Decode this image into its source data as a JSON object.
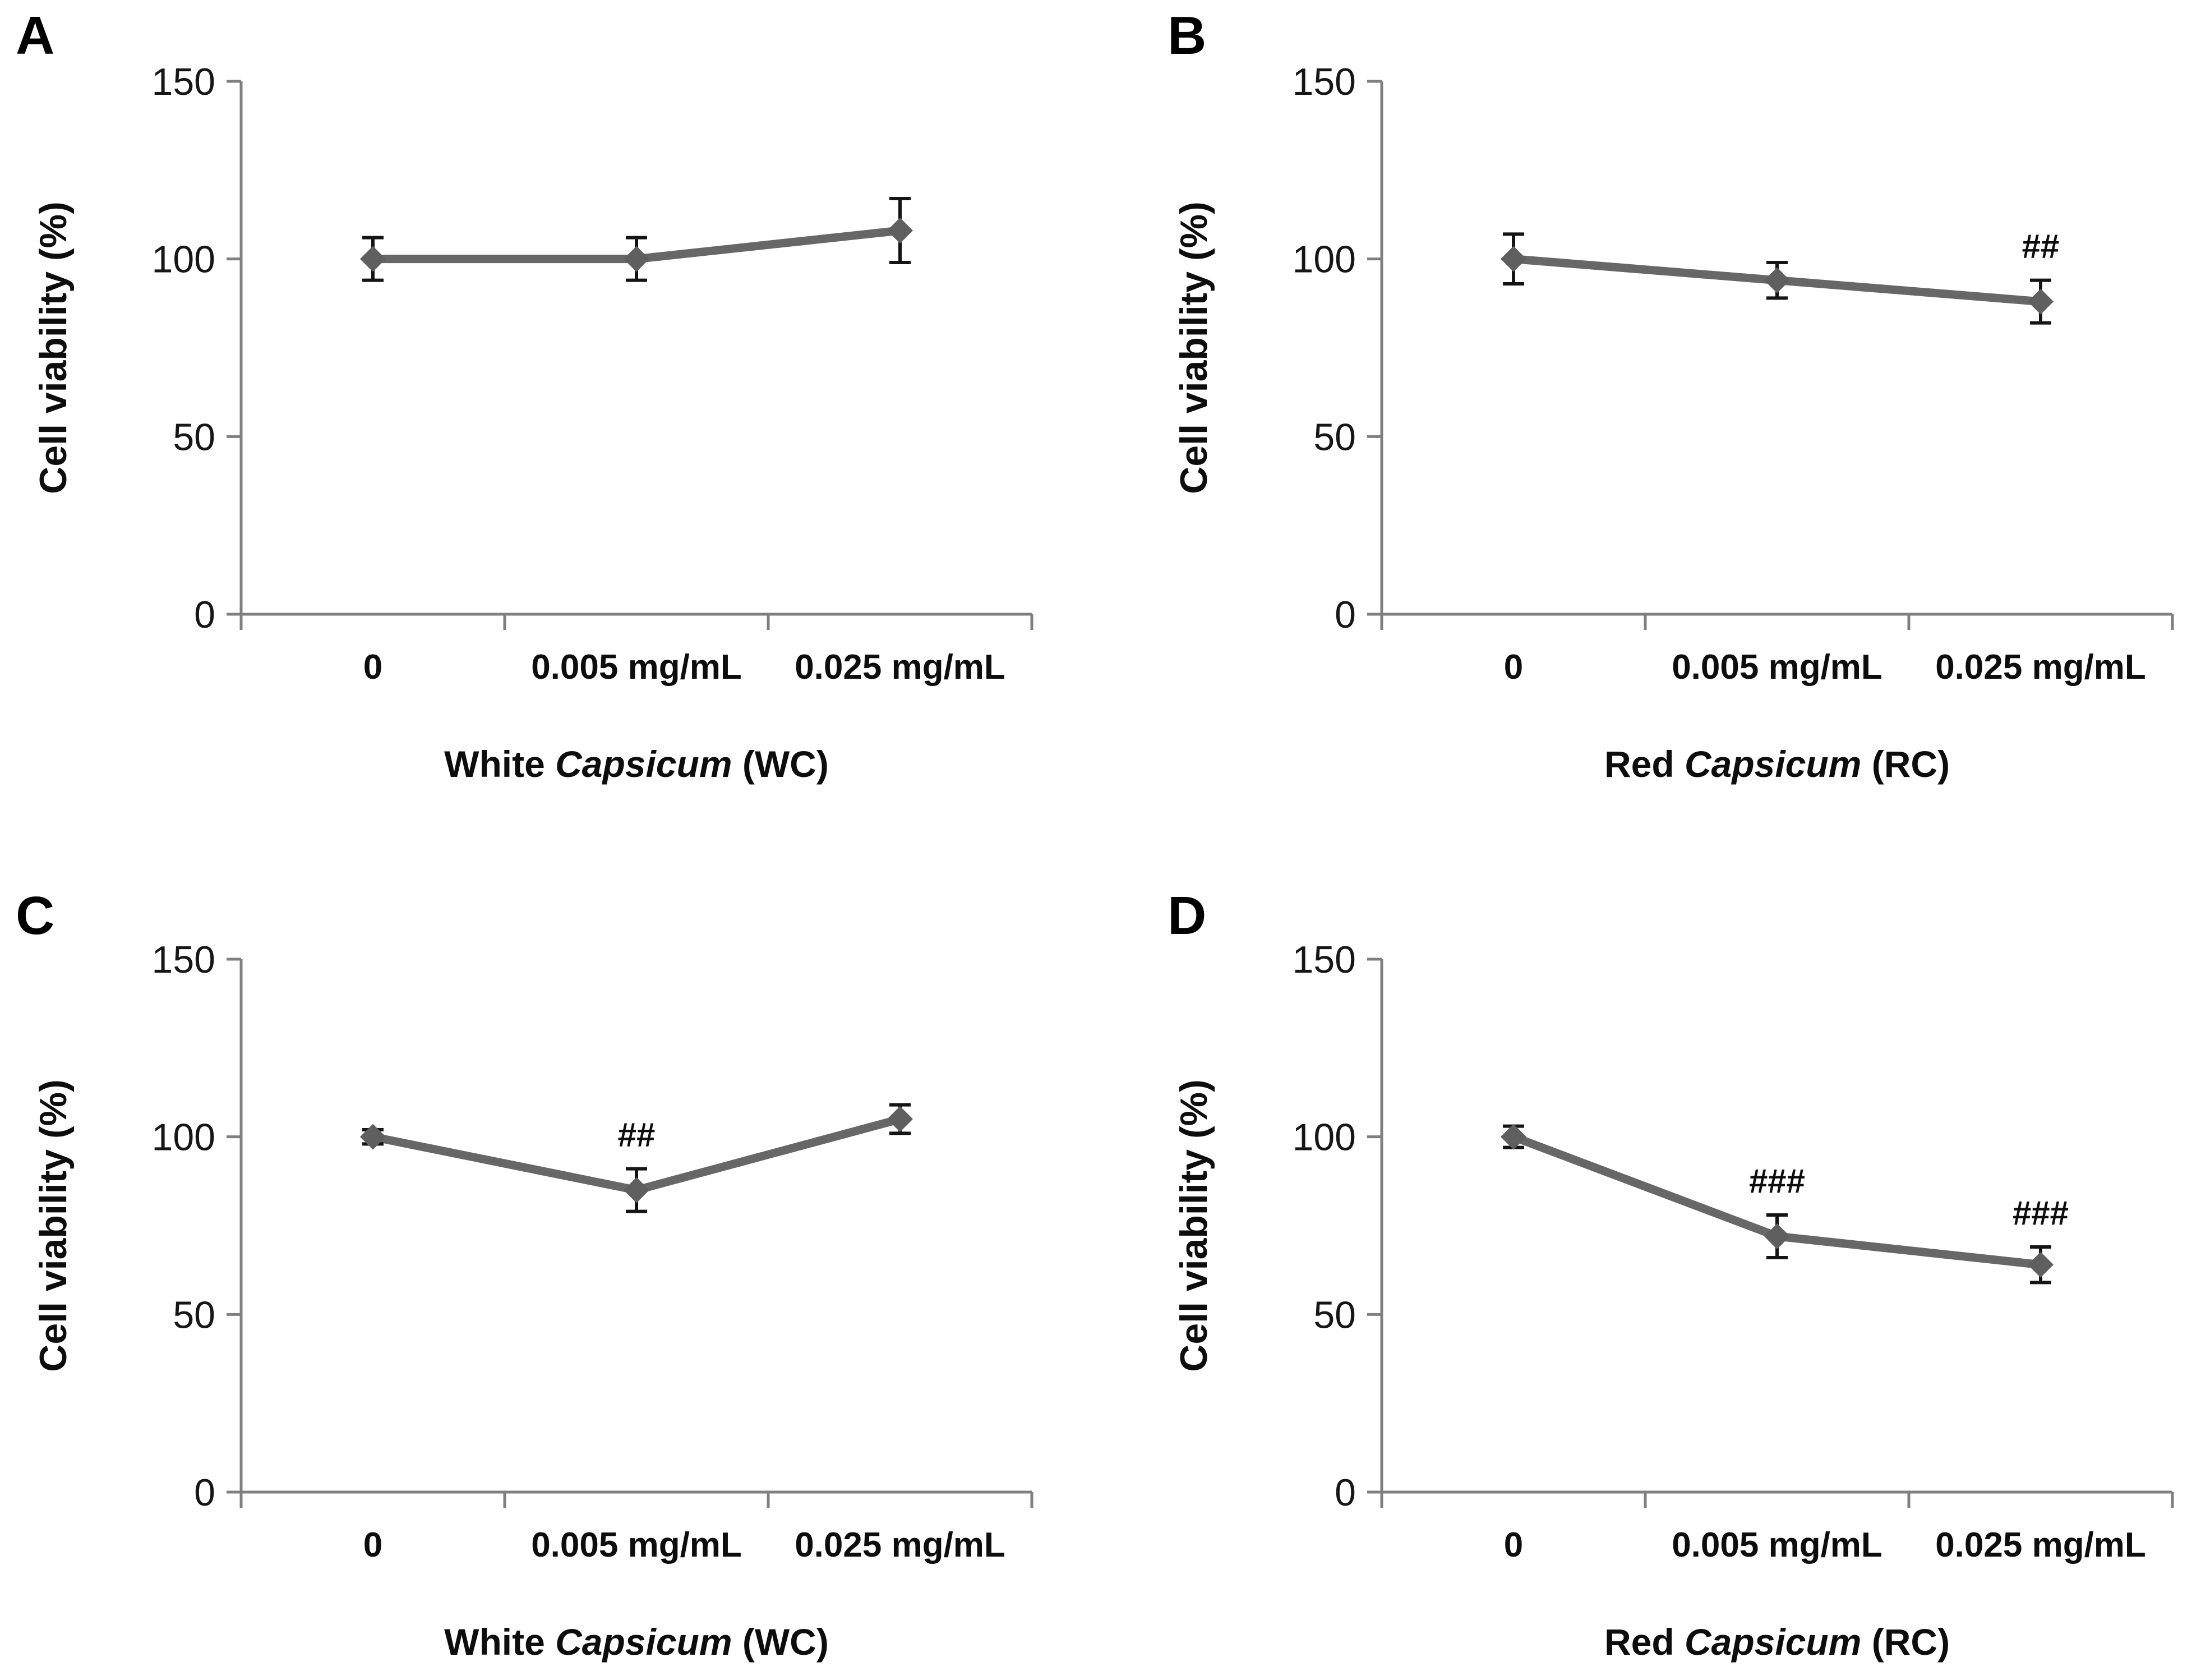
{
  "styles": {
    "background": "#ffffff",
    "line_color": "#676767",
    "marker_color": "#5f5f5f",
    "error_color": "#141414",
    "axis_color": "#7f7f7f",
    "text_color": "#0d0d0d"
  },
  "chart_data": [
    {
      "panel": "A",
      "type": "line",
      "categories": [
        "0",
        "0.005 mg/mL",
        "0.025 mg/mL"
      ],
      "values": [
        100,
        100,
        108
      ],
      "errors": [
        6,
        6,
        9
      ],
      "sig": [
        "",
        "",
        ""
      ],
      "ylabel": "Cell viability (%)",
      "xlabel_parts": [
        {
          "text": "White ",
          "italic": false
        },
        {
          "text": "Capsicum",
          "italic": true
        },
        {
          "text": " (WC)",
          "italic": false
        }
      ],
      "yticks": [
        0,
        50,
        100,
        150
      ],
      "ylim": [
        0,
        150
      ],
      "grid": false,
      "legend": "none"
    },
    {
      "panel": "B",
      "type": "line",
      "categories": [
        "0",
        "0.005 mg/mL",
        "0.025 mg/mL"
      ],
      "values": [
        100,
        94,
        88
      ],
      "errors": [
        7,
        5,
        6
      ],
      "sig": [
        "",
        "",
        "##"
      ],
      "ylabel": "Cell viability (%)",
      "xlabel_parts": [
        {
          "text": "Red ",
          "italic": false
        },
        {
          "text": "Capsicum",
          "italic": true
        },
        {
          "text": " (RC)",
          "italic": false
        }
      ],
      "yticks": [
        0,
        50,
        100,
        150
      ],
      "ylim": [
        0,
        150
      ],
      "grid": false,
      "legend": "none"
    },
    {
      "panel": "C",
      "type": "line",
      "categories": [
        "0",
        "0.005 mg/mL",
        "0.025 mg/mL"
      ],
      "values": [
        100,
        85,
        105
      ],
      "errors": [
        2,
        6,
        4
      ],
      "sig": [
        "",
        "##",
        ""
      ],
      "ylabel": "Cell viability (%)",
      "xlabel_parts": [
        {
          "text": "White ",
          "italic": false
        },
        {
          "text": "Capsicum",
          "italic": true
        },
        {
          "text": " (WC)",
          "italic": false
        }
      ],
      "yticks": [
        0,
        50,
        100,
        150
      ],
      "ylim": [
        0,
        150
      ],
      "grid": false,
      "legend": "none"
    },
    {
      "panel": "D",
      "type": "line",
      "categories": [
        "0",
        "0.005 mg/mL",
        "0.025 mg/mL"
      ],
      "values": [
        100,
        72,
        64
      ],
      "errors": [
        3,
        6,
        5
      ],
      "sig": [
        "",
        "###",
        "###"
      ],
      "ylabel": "Cell viability (%)",
      "xlabel_parts": [
        {
          "text": "Red ",
          "italic": false
        },
        {
          "text": "Capsicum",
          "italic": true
        },
        {
          "text": " (RC)",
          "italic": false
        }
      ],
      "yticks": [
        0,
        50,
        100,
        150
      ],
      "ylim": [
        0,
        150
      ],
      "grid": false,
      "legend": "none"
    }
  ]
}
